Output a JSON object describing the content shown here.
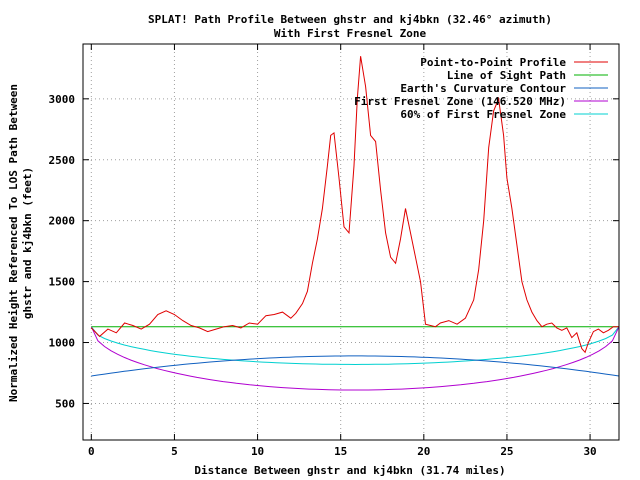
{
  "chart_data": {
    "type": "line",
    "title": "SPLAT! Path Profile Between ghstr and kj4bkn (32.46° azimuth)",
    "subtitle": "With First Fresnel Zone",
    "xlabel": "Distance Between ghstr and kj4bkn (31.74 miles)",
    "ylabel_line1": "Normalized Height Referenced To LOS Path Between",
    "ylabel_line2": "ghstr and kj4bkn (feet)",
    "xlim": [
      -0.5,
      31.74
    ],
    "ylim": [
      200,
      3450
    ],
    "xticks": [
      0,
      5,
      10,
      15,
      20,
      25,
      30
    ],
    "yticks": [
      500,
      1000,
      1500,
      2000,
      2500,
      3000
    ],
    "grid": true,
    "legend_position": "top-right",
    "x_end": 31.74,
    "colors": {
      "profile": "#e00000",
      "los": "#00b000",
      "curvature": "#1060c0",
      "fresnel": "#b000d0",
      "fresnel60": "#00d0d0"
    },
    "series": [
      {
        "name": "Point-to-Point Profile",
        "color_key": "profile",
        "x": [
          0,
          0.5,
          1,
          1.5,
          2,
          2.5,
          3,
          3.5,
          4,
          4.5,
          5,
          5.5,
          6,
          6.5,
          7,
          7.5,
          8,
          8.5,
          9,
          9.5,
          10,
          10.5,
          11,
          11.5,
          12,
          12.3,
          12.7,
          13,
          13.3,
          13.6,
          13.9,
          14.2,
          14.4,
          14.6,
          14.9,
          15.2,
          15.5,
          15.8,
          16,
          16.2,
          16.5,
          16.8,
          17.1,
          17.4,
          17.7,
          18,
          18.3,
          18.6,
          18.9,
          19.2,
          19.5,
          19.8,
          20.1,
          20.4,
          20.7,
          21,
          21.5,
          22,
          22.5,
          23,
          23.3,
          23.6,
          23.9,
          24.2,
          24.5,
          24.8,
          25,
          25.3,
          25.6,
          25.9,
          26.2,
          26.5,
          26.8,
          27.1,
          27.4,
          27.7,
          28,
          28.3,
          28.6,
          28.9,
          29.2,
          29.5,
          29.7,
          29.9,
          30.2,
          30.5,
          30.8,
          31.1,
          31.4,
          31.74
        ],
        "y": [
          1120,
          1050,
          1110,
          1080,
          1160,
          1140,
          1110,
          1150,
          1230,
          1260,
          1230,
          1180,
          1140,
          1120,
          1090,
          1110,
          1130,
          1140,
          1120,
          1160,
          1150,
          1220,
          1230,
          1250,
          1200,
          1240,
          1320,
          1420,
          1650,
          1850,
          2100,
          2450,
          2700,
          2720,
          2350,
          1950,
          1900,
          2450,
          3000,
          3350,
          3100,
          2700,
          2650,
          2250,
          1900,
          1700,
          1650,
          1850,
          2100,
          1900,
          1700,
          1500,
          1150,
          1140,
          1130,
          1160,
          1180,
          1150,
          1200,
          1350,
          1600,
          2000,
          2600,
          2900,
          3000,
          2700,
          2350,
          2100,
          1800,
          1500,
          1350,
          1250,
          1180,
          1130,
          1150,
          1160,
          1120,
          1100,
          1120,
          1040,
          1080,
          950,
          920,
          1000,
          1090,
          1110,
          1080,
          1100,
          1130,
          1130
        ]
      },
      {
        "name": "Line of Sight Path",
        "color_key": "los",
        "shape": "flat",
        "value": 1130
      },
      {
        "name": "Earth's Curvature Contour",
        "color_key": "curvature",
        "shape": "arc",
        "end_value": 725,
        "mid_value": 890
      },
      {
        "name": "First Fresnel Zone (146.520 MHz)",
        "color_key": "fresnel",
        "shape": "ellipse",
        "end_value": 1130,
        "mid_value": 610
      },
      {
        "name": "60% of First Fresnel Zone",
        "color_key": "fresnel60",
        "shape": "ellipse",
        "end_value": 1130,
        "mid_value": 820
      }
    ]
  }
}
